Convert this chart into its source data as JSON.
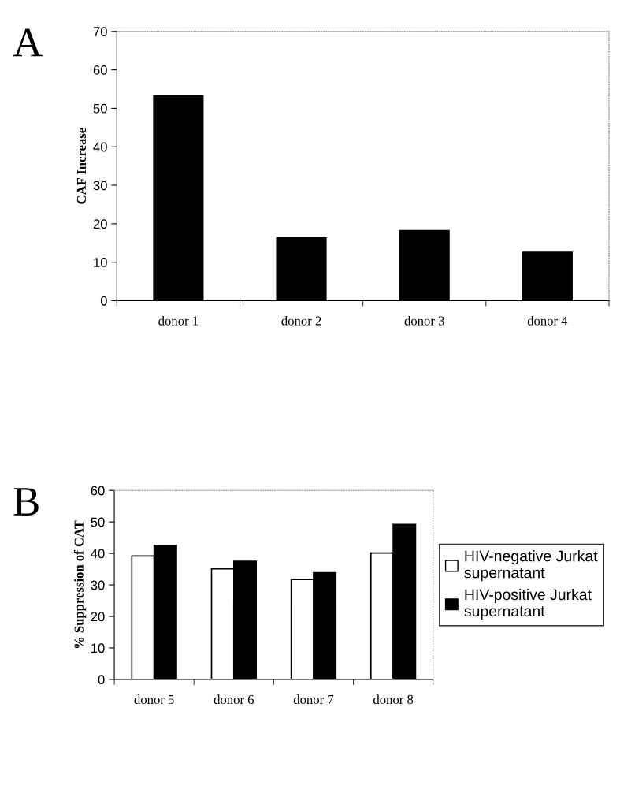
{
  "chart_data": [
    {
      "type": "bar",
      "title": "A",
      "ylabel": "CAF Increase",
      "categories": [
        "donor 1",
        "donor 2",
        "donor 3",
        "donor 4"
      ],
      "series": [
        {
          "color": "#000000",
          "values": [
            53.3,
            16.3,
            18.2,
            12.6
          ]
        }
      ],
      "ylim": [
        0,
        70
      ],
      "yticks": [
        0,
        10,
        20,
        30,
        40,
        50,
        60,
        70
      ],
      "grid": false,
      "legend": false
    },
    {
      "type": "bar",
      "title": "B",
      "ylabel": "% Suppression of CAT",
      "categories": [
        "donor 5",
        "donor 6",
        "donor 7",
        "donor 8"
      ],
      "series": [
        {
          "name": "HIV-negative Jurkat\nsupernatant",
          "color": "#ffffff",
          "values": [
            39.2,
            35.1,
            31.7,
            40.1
          ]
        },
        {
          "name": "HIV-positive Jurkat\nsupernatant",
          "color": "#000000",
          "values": [
            42.6,
            37.5,
            33.9,
            49.2
          ]
        }
      ],
      "ylim": [
        0,
        60
      ],
      "yticks": [
        0,
        10,
        20,
        30,
        40,
        50,
        60
      ],
      "grid": false,
      "legend": "right"
    }
  ]
}
